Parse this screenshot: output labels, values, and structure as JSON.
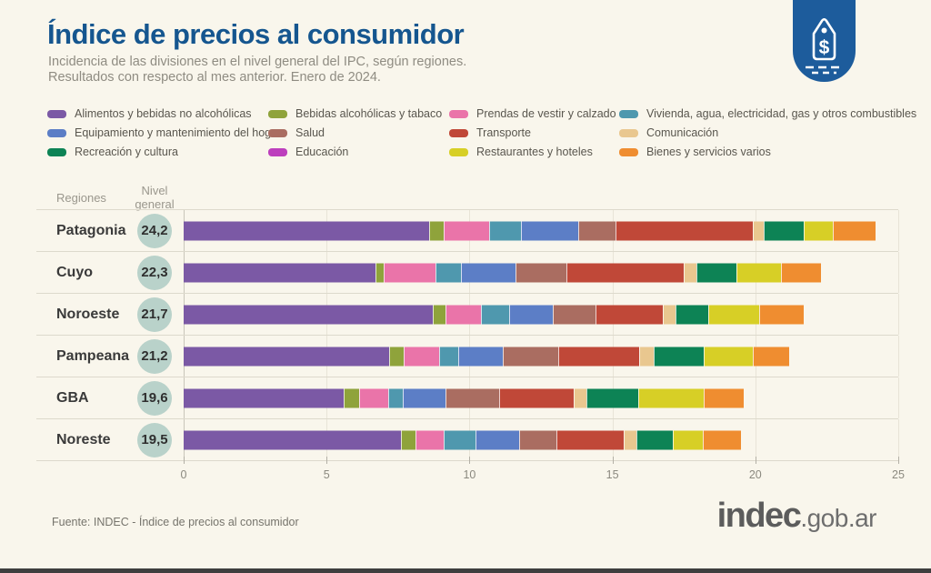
{
  "header": {
    "title": "Índice de precios al consumidor",
    "subtitle_line1": "Incidencia de las divisiones en el nivel general del IPC, según regiones.",
    "subtitle_line2": "Resultados con respecto al mes anterior. Enero de 2024.",
    "badge_color": "#1d5c9c"
  },
  "table_header": {
    "col_regiones": "Regiones",
    "col_nivel_line1": "Nivel",
    "col_nivel_line2": "general"
  },
  "legend": {
    "order": [
      "alimentos",
      "bebidas_alcoholicas",
      "prendas",
      "vivienda",
      "equipamiento",
      "salud",
      "transporte",
      "comunicacion",
      "recreacion",
      "educacion",
      "restaurantes",
      "bienes"
    ]
  },
  "chart_data": {
    "type": "bar",
    "subtype": "horizontal-stacked",
    "title": "Índice de precios al consumidor",
    "period": "Enero de 2024",
    "x_axis": {
      "min": 0,
      "max": 25,
      "ticks": [
        0,
        5,
        10,
        15,
        20,
        25
      ]
    },
    "divisions": [
      {
        "id": "alimentos",
        "label": "Alimentos y bebidas no alcohólicas",
        "color": "#7b59a5"
      },
      {
        "id": "bebidas_alcoholicas",
        "label": "Bebidas alcohólicas y tabaco",
        "color": "#8fa33b"
      },
      {
        "id": "prendas",
        "label": "Prendas de vestir y calzado",
        "color": "#ea74a9"
      },
      {
        "id": "vivienda",
        "label": "Vivienda, agua, electricidad, gas y otros combustibles",
        "color": "#4f98ae"
      },
      {
        "id": "equipamiento",
        "label": "Equipamiento y mantenimiento del hogar",
        "color": "#5c7ec6"
      },
      {
        "id": "salud",
        "label": "Salud",
        "color": "#aa6d61"
      },
      {
        "id": "transporte",
        "label": "Transporte",
        "color": "#c04838"
      },
      {
        "id": "comunicacion",
        "label": "Comunicación",
        "color": "#e9c78f"
      },
      {
        "id": "recreacion",
        "label": "Recreación y cultura",
        "color": "#0d8355"
      },
      {
        "id": "educacion",
        "label": "Educación",
        "color": "#bd3fbd"
      },
      {
        "id": "restaurantes",
        "label": "Restaurantes y hoteles",
        "color": "#d7cf26"
      },
      {
        "id": "bienes",
        "label": "Bienes y servicios varios",
        "color": "#ef8d30"
      }
    ],
    "regions": [
      {
        "name": "Patagonia",
        "nivel_general_label": "24,2",
        "nivel_general": 24.2,
        "values": [
          8.6,
          0.5,
          1.6,
          1.1,
          2.0,
          1.3,
          4.8,
          0.4,
          1.4,
          0,
          1.0,
          1.5
        ]
      },
      {
        "name": "Cuyo",
        "nivel_general_label": "22,3",
        "nivel_general": 22.3,
        "values": [
          6.7,
          0.3,
          1.8,
          0.9,
          1.9,
          1.8,
          4.1,
          0.45,
          1.4,
          0,
          1.55,
          1.4
        ]
      },
      {
        "name": "Noroeste",
        "nivel_general_label": "21,7",
        "nivel_general": 21.7,
        "values": [
          8.7,
          0.45,
          1.25,
          1.0,
          1.5,
          1.5,
          2.35,
          0.45,
          1.15,
          0,
          1.8,
          1.55
        ]
      },
      {
        "name": "Pampeana",
        "nivel_general_label": "21,2",
        "nivel_general": 21.2,
        "values": [
          7.2,
          0.5,
          1.25,
          0.65,
          1.55,
          1.95,
          2.85,
          0.5,
          1.75,
          0,
          1.7,
          1.3
        ]
      },
      {
        "name": "GBA",
        "nivel_general_label": "19,6",
        "nivel_general": 19.6,
        "values": [
          5.6,
          0.55,
          1.0,
          0.5,
          1.5,
          1.9,
          2.6,
          0.45,
          1.8,
          0,
          2.3,
          1.4
        ]
      },
      {
        "name": "Noreste",
        "nivel_general_label": "19,5",
        "nivel_general": 19.5,
        "values": [
          7.6,
          0.5,
          1.0,
          1.1,
          1.55,
          1.3,
          2.35,
          0.45,
          1.25,
          0,
          1.05,
          1.35
        ]
      }
    ],
    "circle_color": "#b9d2ca"
  },
  "footer": {
    "source": "Fuente: INDEC - Índice de precios al consumidor",
    "logo_main": "indec",
    "logo_suffix": ".gob.ar"
  }
}
